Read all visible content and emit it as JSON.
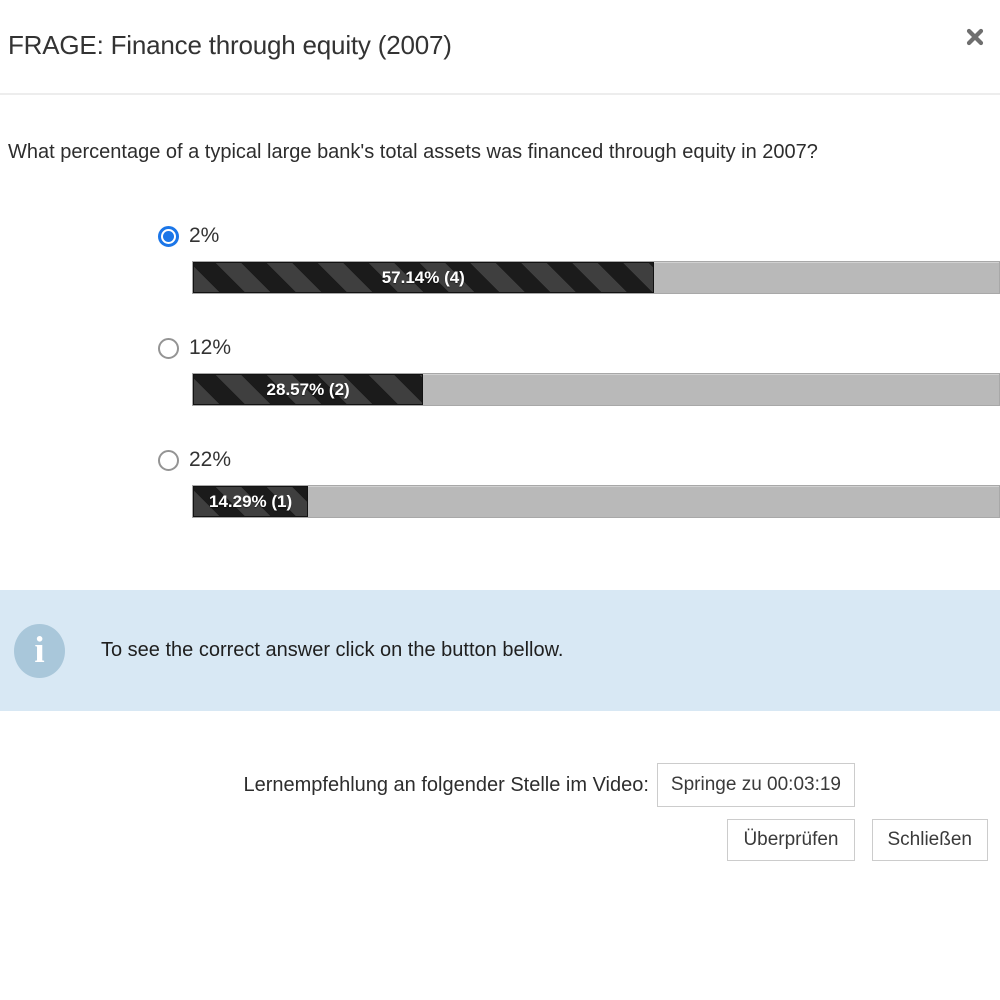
{
  "header": {
    "title": "FRAGE: Finance through equity (2007)",
    "close_icon": "close-icon"
  },
  "question": {
    "text": "What percentage of a typical large bank's total assets was financed through equity in 2007?"
  },
  "options": [
    {
      "label": "2%",
      "selected": true,
      "result_text": "57.14% (4)",
      "percent": 57.14,
      "votes": 4
    },
    {
      "label": "12%",
      "selected": false,
      "result_text": "28.57% (2)",
      "percent": 28.57,
      "votes": 2
    },
    {
      "label": "22%",
      "selected": false,
      "result_text": "14.29% (1)",
      "percent": 14.29,
      "votes": 1
    }
  ],
  "banner": {
    "icon": "info-icon",
    "icon_glyph": "i",
    "text": "To see the correct answer click on the button bellow."
  },
  "video": {
    "label": "Lernempfehlung an folgender Stelle im Video:",
    "button_label": "Springe zu 00:03:19"
  },
  "actions": {
    "check_label": "Überprüfen",
    "close_label": "Schließen"
  },
  "colors": {
    "accent_blue": "#1b76e8",
    "banner_bg": "#d8e8f4",
    "banner_icon": "#a9c7da",
    "stripe_dark": "#1b1b1b",
    "stripe_light": "#3f3f3f",
    "bar_track": "#b9b9b9",
    "button_border": "#cccccc"
  }
}
